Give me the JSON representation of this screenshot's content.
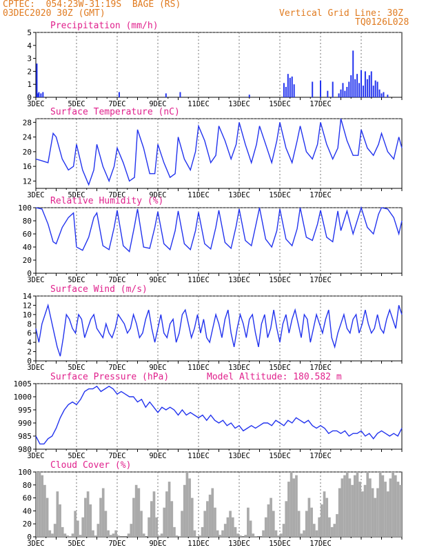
{
  "header": {
    "line1": "CPTEC:  054:23W-31:19S  BAGE (RS)",
    "line2": "03DEC2020 30Z (GMT)",
    "grid_note": "Vertical Grid Line: 30Z",
    "code": "TQ0126L028"
  },
  "colors": {
    "header": "#e07a1f",
    "title": "#e0208c",
    "line": "#2233ee",
    "cloud": "#aaaaaa"
  },
  "chart_data": [
    {
      "type": "bar",
      "title": "Precipitation (mm/h)",
      "ylim": [
        0,
        5
      ],
      "yticks": [
        "0",
        "1",
        "2",
        "3",
        "4",
        "5"
      ],
      "xticks": [
        "3DEC",
        "5DEC",
        "7DEC",
        "9DEC",
        "11DEC",
        "13DEC",
        "15DEC",
        "17DEC"
      ],
      "x": [
        0.05,
        0.1,
        0.15,
        0.25,
        0.35,
        4.1,
        6.4,
        7.1,
        10.5,
        12.2,
        12.3,
        12.4,
        12.5,
        12.6,
        12.7,
        13.6,
        14.0,
        14.35,
        14.6,
        14.9,
        15.0,
        15.1,
        15.2,
        15.3,
        15.4,
        15.5,
        15.6,
        15.7,
        15.8,
        15.9,
        16.0,
        16.1,
        16.2,
        16.3,
        16.4,
        16.5,
        16.6,
        16.7,
        16.8,
        16.9,
        17.0,
        17.1,
        17.3
      ],
      "values": [
        2.6,
        0.3,
        0.4,
        0.3,
        0.4,
        0.4,
        0.3,
        0.4,
        0.2,
        1.1,
        0.8,
        1.8,
        1.5,
        1.6,
        1.0,
        1.2,
        1.3,
        0.5,
        1.2,
        0.3,
        0.6,
        1.1,
        0.5,
        0.8,
        1.2,
        1.7,
        3.6,
        1.4,
        1.8,
        1.1,
        2.1,
        0.9,
        2.0,
        1.4,
        1.7,
        2.0,
        0.9,
        1.3,
        1.2,
        0.6,
        0.3,
        0.4,
        0.2
      ]
    },
    {
      "type": "line",
      "title": "Surface Temperature (nC)",
      "ylim": [
        10,
        29
      ],
      "yticks": [
        "12",
        "16",
        "20",
        "24",
        "28"
      ],
      "xticks": [
        "3DEC",
        "5DEC",
        "7DEC",
        "9DEC",
        "11DEC",
        "13DEC",
        "15DEC",
        "17DEC"
      ],
      "x": [
        0,
        0.3,
        0.6,
        0.85,
        1.0,
        1.3,
        1.6,
        1.85,
        2.0,
        2.3,
        2.6,
        2.85,
        3.0,
        3.3,
        3.6,
        3.85,
        4.0,
        4.3,
        4.6,
        4.85,
        5.0,
        5.3,
        5.6,
        5.85,
        6.0,
        6.3,
        6.6,
        6.85,
        7.0,
        7.3,
        7.6,
        7.85,
        8.0,
        8.3,
        8.6,
        8.85,
        9.0,
        9.3,
        9.6,
        9.85,
        10.0,
        10.3,
        10.6,
        10.85,
        11.0,
        11.3,
        11.6,
        11.85,
        12.0,
        12.3,
        12.6,
        12.85,
        13.0,
        13.3,
        13.6,
        13.85,
        14.0,
        14.3,
        14.6,
        14.85,
        15.0,
        15.3,
        15.6,
        15.85,
        16.0,
        16.3,
        16.6,
        16.85,
        17.0,
        17.3,
        17.6,
        17.85,
        18.0
      ],
      "values": [
        18,
        17.5,
        17,
        25,
        24,
        18,
        15,
        16,
        22,
        15,
        11,
        15,
        22,
        16,
        12,
        16,
        21,
        17,
        12,
        13,
        26,
        21,
        14,
        14,
        22,
        17,
        13,
        14,
        24,
        18,
        15,
        20,
        27,
        23,
        17,
        19,
        27,
        23,
        18,
        22,
        28,
        22,
        17,
        22,
        27,
        22,
        17,
        23,
        28,
        21,
        17,
        23,
        27,
        20,
        18,
        22,
        28,
        22,
        18,
        21,
        29,
        23,
        19,
        19,
        26,
        21,
        19,
        22,
        25,
        20,
        18,
        24,
        21
      ]
    },
    {
      "type": "line",
      "title": "Relative Humidity (%)",
      "ylim": [
        0,
        100
      ],
      "yticks": [
        "0",
        "20",
        "40",
        "60",
        "80",
        "100"
      ],
      "xticks": [
        "3DEC",
        "5DEC",
        "7DEC",
        "9DEC",
        "11DEC",
        "13DEC",
        "15DEC",
        "17DEC"
      ],
      "x": [
        0,
        0.3,
        0.6,
        0.85,
        1.0,
        1.3,
        1.6,
        1.85,
        2.0,
        2.3,
        2.6,
        2.85,
        3.0,
        3.3,
        3.6,
        3.85,
        4.0,
        4.3,
        4.6,
        4.85,
        5.0,
        5.3,
        5.6,
        5.85,
        6.0,
        6.3,
        6.6,
        6.85,
        7.0,
        7.3,
        7.6,
        7.85,
        8.0,
        8.3,
        8.6,
        8.85,
        9.0,
        9.3,
        9.6,
        9.85,
        10.0,
        10.3,
        10.6,
        10.85,
        11.0,
        11.3,
        11.6,
        11.85,
        12.0,
        12.3,
        12.6,
        12.85,
        13.0,
        13.3,
        13.6,
        13.85,
        14.0,
        14.3,
        14.6,
        14.85,
        15.0,
        15.3,
        15.6,
        15.85,
        16.0,
        16.3,
        16.6,
        16.85,
        17.0,
        17.3,
        17.6,
        17.85,
        18.0
      ],
      "values": [
        100,
        98,
        75,
        48,
        45,
        70,
        85,
        92,
        40,
        35,
        55,
        85,
        92,
        42,
        36,
        70,
        96,
        42,
        33,
        72,
        98,
        40,
        38,
        70,
        94,
        45,
        36,
        65,
        95,
        45,
        36,
        65,
        93,
        45,
        37,
        70,
        96,
        47,
        38,
        72,
        98,
        50,
        42,
        78,
        100,
        52,
        40,
        65,
        98,
        52,
        42,
        68,
        100,
        55,
        50,
        75,
        96,
        55,
        48,
        95,
        65,
        95,
        60,
        85,
        100,
        70,
        60,
        90,
        100,
        98,
        85,
        60,
        80
      ]
    },
    {
      "type": "line",
      "title": "Surface Wind (m/s)",
      "ylim": [
        0,
        14
      ],
      "yticks": [
        "0",
        "2",
        "4",
        "6",
        "8",
        "10",
        "12",
        "14"
      ],
      "xticks": [
        "3DEC",
        "5DEC",
        "7DEC",
        "9DEC",
        "11DEC",
        "13DEC",
        "15DEC",
        "17DEC"
      ],
      "x": [
        0,
        0.15,
        0.3,
        0.45,
        0.6,
        0.75,
        0.9,
        1.05,
        1.2,
        1.35,
        1.5,
        1.65,
        1.8,
        1.95,
        2.1,
        2.25,
        2.4,
        2.55,
        2.7,
        2.85,
        3.0,
        3.15,
        3.3,
        3.45,
        3.6,
        3.75,
        3.9,
        4.05,
        4.2,
        4.35,
        4.5,
        4.65,
        4.8,
        4.95,
        5.1,
        5.25,
        5.4,
        5.55,
        5.7,
        5.85,
        6.0,
        6.15,
        6.3,
        6.45,
        6.6,
        6.75,
        6.9,
        7.05,
        7.2,
        7.35,
        7.5,
        7.65,
        7.8,
        7.95,
        8.1,
        8.25,
        8.4,
        8.55,
        8.7,
        8.85,
        9.0,
        9.15,
        9.3,
        9.45,
        9.6,
        9.75,
        9.9,
        10.05,
        10.2,
        10.35,
        10.5,
        10.65,
        10.8,
        10.95,
        11.1,
        11.25,
        11.4,
        11.55,
        11.7,
        11.85,
        12.0,
        12.15,
        12.3,
        12.45,
        12.6,
        12.75,
        12.9,
        13.05,
        13.2,
        13.35,
        13.5,
        13.65,
        13.8,
        13.95,
        14.1,
        14.25,
        14.4,
        14.55,
        14.7,
        14.85,
        15.0,
        15.15,
        15.3,
        15.45,
        15.6,
        15.75,
        15.9,
        16.05,
        16.2,
        16.35,
        16.5,
        16.65,
        16.8,
        16.95,
        17.1,
        17.25,
        17.4,
        17.55,
        17.7,
        17.85,
        18.0
      ],
      "values": [
        7,
        4,
        8,
        10,
        12,
        9,
        6,
        3,
        1,
        5,
        10,
        9,
        7,
        6,
        10,
        9,
        5,
        7,
        9,
        10,
        7,
        6,
        5,
        8,
        6,
        5,
        7,
        10,
        9,
        8,
        6,
        7,
        10,
        8,
        5,
        6,
        9,
        11,
        7,
        4,
        7,
        10,
        6,
        5,
        8,
        9,
        4,
        6,
        10,
        11,
        8,
        5,
        7,
        10,
        6,
        9,
        5,
        4,
        7,
        10,
        8,
        5,
        9,
        11,
        6,
        3,
        7,
        10,
        8,
        5,
        9,
        10,
        6,
        3,
        8,
        10,
        5,
        7,
        11,
        7,
        4,
        8,
        10,
        6,
        9,
        11,
        8,
        5,
        10,
        9,
        4,
        7,
        10,
        8,
        6,
        9,
        11,
        5,
        3,
        6,
        8,
        10,
        7,
        6,
        9,
        10,
        6,
        8,
        11,
        8,
        6,
        7,
        10,
        7,
        6,
        9,
        11,
        9,
        7,
        12,
        10
      ]
    },
    {
      "type": "line",
      "title": "Surface Pressure (hPa)",
      "note": "Model Altitude: 180.582 m",
      "ylim": [
        980,
        1005
      ],
      "yticks": [
        "980",
        "985",
        "990",
        "995",
        "1000",
        "1005"
      ],
      "xticks": [
        "3DEC",
        "5DEC",
        "7DEC",
        "9DEC",
        "11DEC",
        "13DEC",
        "15DEC",
        "17DEC"
      ],
      "x": [
        0,
        0.2,
        0.4,
        0.6,
        0.8,
        1.0,
        1.2,
        1.4,
        1.6,
        1.8,
        2.0,
        2.2,
        2.4,
        2.6,
        2.8,
        3.0,
        3.2,
        3.4,
        3.6,
        3.8,
        4.0,
        4.2,
        4.4,
        4.6,
        4.8,
        5.0,
        5.2,
        5.4,
        5.6,
        5.8,
        6.0,
        6.2,
        6.4,
        6.6,
        6.8,
        7.0,
        7.2,
        7.4,
        7.6,
        7.8,
        8.0,
        8.2,
        8.4,
        8.6,
        8.8,
        9.0,
        9.2,
        9.4,
        9.6,
        9.8,
        10.0,
        10.2,
        10.4,
        10.6,
        10.8,
        11.0,
        11.2,
        11.4,
        11.6,
        11.8,
        12.0,
        12.2,
        12.4,
        12.6,
        12.8,
        13.0,
        13.2,
        13.4,
        13.6,
        13.8,
        14.0,
        14.2,
        14.4,
        14.6,
        14.8,
        15.0,
        15.2,
        15.4,
        15.6,
        15.8,
        16.0,
        16.2,
        16.4,
        16.6,
        16.8,
        17.0,
        17.2,
        17.4,
        17.6,
        17.8,
        18.0
      ],
      "values": [
        985,
        982,
        982,
        984,
        985,
        988,
        992,
        995,
        997,
        998,
        997,
        999,
        1002,
        1003,
        1003,
        1004,
        1002,
        1003,
        1004,
        1003,
        1001,
        1002,
        1001,
        1000,
        1000,
        998,
        999,
        996,
        998,
        996,
        994,
        996,
        995,
        996,
        995,
        993,
        995,
        993,
        994,
        993,
        992,
        993,
        991,
        993,
        991,
        990,
        991,
        989,
        990,
        988,
        989,
        987,
        988,
        989,
        988,
        989,
        990,
        990,
        989,
        991,
        990,
        989,
        991,
        990,
        992,
        991,
        990,
        991,
        989,
        988,
        989,
        988,
        986,
        987,
        987,
        986,
        987,
        985,
        986,
        986,
        987,
        985,
        986,
        984,
        986,
        987,
        986,
        985,
        986,
        985,
        988
      ]
    },
    {
      "type": "bar",
      "title": "Cloud Cover (%)",
      "ylim": [
        0,
        100
      ],
      "yticks": [
        "0",
        "20",
        "40",
        "60",
        "80",
        "100"
      ],
      "xticks": [
        "3DEC",
        "5DEC",
        "7DEC",
        "9DEC",
        "11DEC",
        "13DEC",
        "15DEC",
        "17DEC"
      ],
      "x": [
        0.0,
        0.125,
        0.25,
        0.375,
        0.5,
        0.625,
        0.75,
        0.875,
        1.0,
        1.125,
        1.25,
        1.375,
        1.5,
        1.625,
        1.75,
        1.875,
        2.0,
        2.125,
        2.25,
        2.375,
        2.5,
        2.625,
        2.75,
        2.875,
        3.0,
        3.125,
        3.25,
        3.375,
        3.5,
        3.625,
        3.75,
        3.875,
        4.0,
        4.125,
        4.25,
        4.375,
        4.5,
        4.625,
        4.75,
        4.875,
        5.0,
        5.125,
        5.25,
        5.375,
        5.5,
        5.625,
        5.75,
        5.875,
        6.0,
        6.125,
        6.25,
        6.375,
        6.5,
        6.625,
        6.75,
        6.875,
        7.0,
        7.125,
        7.25,
        7.375,
        7.5,
        7.625,
        7.75,
        7.875,
        8.0,
        8.125,
        8.25,
        8.375,
        8.5,
        8.625,
        8.75,
        8.875,
        9.0,
        9.125,
        9.25,
        9.375,
        9.5,
        9.625,
        9.75,
        9.875,
        10.0,
        10.125,
        10.25,
        10.375,
        10.5,
        10.625,
        10.75,
        10.875,
        11.0,
        11.125,
        11.25,
        11.375,
        11.5,
        11.625,
        11.75,
        11.875,
        12.0,
        12.125,
        12.25,
        12.375,
        12.5,
        12.625,
        12.75,
        12.875,
        13.0,
        13.125,
        13.25,
        13.375,
        13.5,
        13.625,
        13.75,
        13.875,
        14.0,
        14.125,
        14.25,
        14.375,
        14.5,
        14.625,
        14.75,
        14.875,
        15.0,
        15.125,
        15.25,
        15.375,
        15.5,
        15.625,
        15.75,
        15.875,
        16.0,
        16.125,
        16.25,
        16.375,
        16.5,
        16.625,
        16.75,
        16.875,
        17.0,
        17.125,
        17.25,
        17.375,
        17.5,
        17.625,
        17.75,
        17.875
      ],
      "values": [
        100,
        100,
        95,
        80,
        60,
        10,
        5,
        20,
        70,
        50,
        15,
        5,
        2,
        1,
        5,
        40,
        25,
        3,
        30,
        60,
        70,
        50,
        10,
        2,
        20,
        60,
        75,
        40,
        10,
        3,
        5,
        10,
        2,
        0,
        0,
        0,
        5,
        20,
        60,
        80,
        75,
        40,
        5,
        0,
        30,
        55,
        70,
        30,
        2,
        5,
        45,
        70,
        85,
        55,
        15,
        2,
        1,
        40,
        80,
        100,
        90,
        60,
        10,
        1,
        2,
        15,
        40,
        55,
        65,
        75,
        45,
        10,
        3,
        10,
        20,
        30,
        40,
        30,
        15,
        5,
        2,
        0,
        3,
        45,
        25,
        5,
        1,
        0,
        0,
        10,
        30,
        50,
        60,
        40,
        10,
        2,
        5,
        20,
        55,
        85,
        100,
        90,
        95,
        40,
        5,
        10,
        40,
        60,
        45,
        20,
        10,
        30,
        50,
        70,
        60,
        30,
        15,
        20,
        35,
        75,
        90,
        95,
        100,
        90,
        80,
        95,
        100,
        85,
        70,
        80,
        100,
        90,
        75,
        60,
        75,
        100,
        95,
        85,
        70,
        90,
        100,
        95,
        85,
        80
      ]
    }
  ]
}
